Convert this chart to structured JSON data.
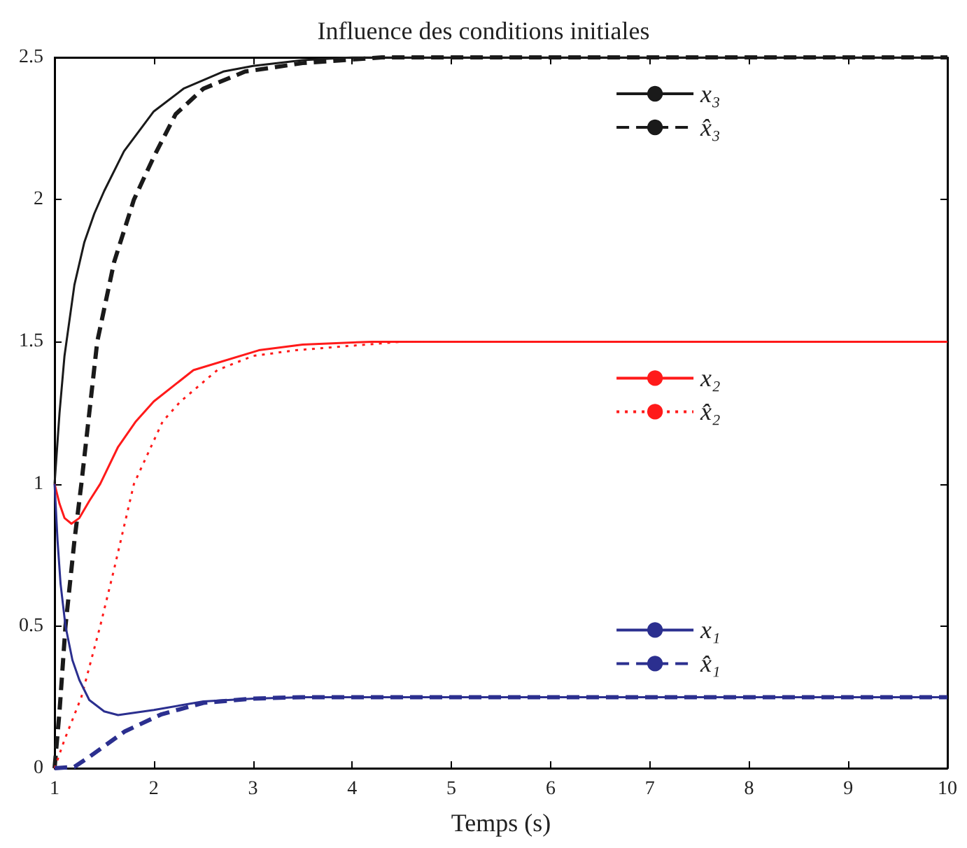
{
  "chart_data": {
    "type": "line",
    "title": "Influence des conditions initiales",
    "xlabel": "Temps (s)",
    "xlim": [
      1,
      10
    ],
    "xticks": [
      1,
      2,
      3,
      4,
      5,
      6,
      7,
      8,
      9,
      10
    ],
    "ylim": [
      0,
      2.5
    ],
    "yticks": [
      0,
      0.5,
      1,
      1.5,
      2,
      2.5
    ],
    "grid": false,
    "legend": "right",
    "marker": "none",
    "series": [
      {
        "name": "x₃",
        "color": "#1a1a1a",
        "line_style": "solid",
        "x": [
          1,
          1.05,
          1.1,
          1.2,
          1.3,
          1.4,
          1.5,
          1.7,
          2.0,
          2.3,
          2.7,
          3.0,
          3.5,
          4,
          10
        ],
        "values": [
          1.0,
          1.25,
          1.45,
          1.7,
          1.85,
          1.95,
          2.03,
          2.17,
          2.31,
          2.39,
          2.45,
          2.47,
          2.49,
          2.5,
          2.5
        ]
      },
      {
        "name": "x̂₃",
        "color": "#1a1a1a",
        "line_style": "dashed",
        "x": [
          1,
          1.05,
          1.11,
          1.2,
          1.27,
          1.35,
          1.43,
          1.6,
          1.8,
          2.0,
          2.22,
          2.5,
          2.92,
          3.5,
          4.3,
          10
        ],
        "values": [
          0,
          0.2,
          0.5,
          0.8,
          1.0,
          1.25,
          1.5,
          1.78,
          2.0,
          2.15,
          2.3,
          2.39,
          2.45,
          2.48,
          2.5,
          2.5
        ]
      },
      {
        "name": "x₂",
        "color": "#ff1a1a",
        "line_style": "solid",
        "x": [
          1,
          1.05,
          1.1,
          1.17,
          1.25,
          1.35,
          1.46,
          1.64,
          1.82,
          2.0,
          2.4,
          3.06,
          3.5,
          4.2,
          10
        ],
        "values": [
          1.0,
          0.93,
          0.88,
          0.86,
          0.88,
          0.94,
          1.0,
          1.13,
          1.22,
          1.29,
          1.4,
          1.47,
          1.49,
          1.5,
          1.5
        ]
      },
      {
        "name": "x̂₂",
        "color": "#ff1a1a",
        "line_style": "dotted",
        "x": [
          1,
          1.1,
          1.27,
          1.46,
          1.6,
          1.8,
          2.09,
          2.27,
          2.64,
          3.0,
          3.43,
          4.5,
          10
        ],
        "values": [
          0,
          0.1,
          0.25,
          0.5,
          0.7,
          1.0,
          1.22,
          1.29,
          1.4,
          1.45,
          1.47,
          1.5,
          1.5
        ]
      },
      {
        "name": "x₁",
        "color": "#2b2f8f",
        "line_style": "solid",
        "x": [
          1,
          1.03,
          1.06,
          1.11,
          1.18,
          1.25,
          1.35,
          1.5,
          1.64,
          2.0,
          2.5,
          3.0,
          3.5,
          10
        ],
        "values": [
          1.0,
          0.8,
          0.65,
          0.5,
          0.38,
          0.31,
          0.24,
          0.2,
          0.187,
          0.205,
          0.235,
          0.245,
          0.25,
          0.25
        ]
      },
      {
        "name": "x̂₁",
        "color": "#2b2f8f",
        "line_style": "dashed",
        "x": [
          1,
          1.2,
          1.35,
          1.71,
          2.08,
          2.5,
          3.0,
          3.5,
          10
        ],
        "values": [
          0,
          0.005,
          0.04,
          0.13,
          0.19,
          0.23,
          0.245,
          0.25,
          0.25
        ]
      }
    ]
  }
}
